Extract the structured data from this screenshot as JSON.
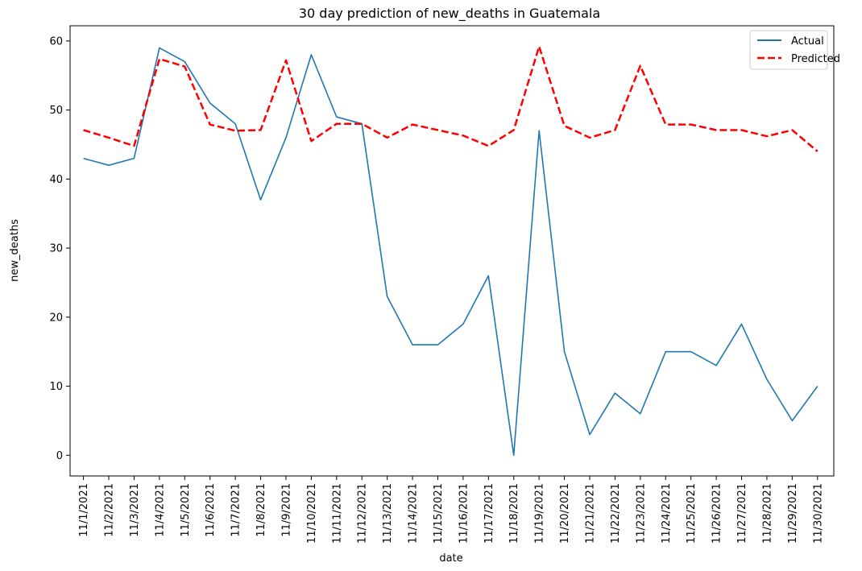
{
  "chart_data": {
    "type": "line",
    "title": "30 day prediction of new_deaths in Guatemala",
    "xlabel": "date",
    "ylabel": "new_deaths",
    "ylim": [
      -3,
      62.2
    ],
    "yticks": [
      0,
      10,
      20,
      30,
      40,
      50,
      60
    ],
    "grid": false,
    "legend_position": "top-right",
    "categories": [
      "11/1/2021",
      "11/2/2021",
      "11/3/2021",
      "11/4/2021",
      "11/5/2021",
      "11/6/2021",
      "11/7/2021",
      "11/8/2021",
      "11/9/2021",
      "11/10/2021",
      "11/11/2021",
      "11/12/2021",
      "11/13/2021",
      "11/14/2021",
      "11/15/2021",
      "11/16/2021",
      "11/17/2021",
      "11/18/2021",
      "11/19/2021",
      "11/20/2021",
      "11/21/2021",
      "11/22/2021",
      "11/23/2021",
      "11/24/2021",
      "11/25/2021",
      "11/26/2021",
      "11/27/2021",
      "11/28/2021",
      "11/29/2021",
      "11/30/2021"
    ],
    "series": [
      {
        "name": "Actual",
        "color": "#1f77b4",
        "style": "solid",
        "values": [
          43,
          42,
          43,
          59,
          57,
          51,
          48,
          37,
          46,
          58,
          49,
          48,
          23,
          16,
          16,
          19,
          26,
          0,
          47,
          15,
          3,
          9,
          6,
          15,
          15,
          13,
          19,
          11,
          5,
          10
        ]
      },
      {
        "name": "Predicted",
        "color": "#ff0000",
        "style": "dashed",
        "values": [
          47.1,
          46,
          44.8,
          57.4,
          56.3,
          47.9,
          47,
          47.1,
          57.2,
          45.5,
          48,
          48,
          46,
          47.9,
          47.1,
          46.3,
          44.8,
          47.1,
          59.2,
          47.7,
          46,
          47.1,
          56.4,
          47.9,
          47.9,
          47.1,
          47.1,
          46.2,
          47.1,
          44
        ]
      }
    ]
  }
}
